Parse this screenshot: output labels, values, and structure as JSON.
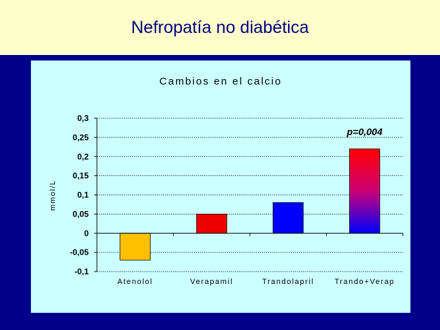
{
  "slide": {
    "title": "Nefropatía no diabética"
  },
  "colors": {
    "title_band": "#ffffcc",
    "background": "#00008b",
    "panel": "#ccffff",
    "title_text": "#000080"
  },
  "chart_data": {
    "type": "bar",
    "title": "Cambios en el calcio",
    "ylabel": "mmol/L",
    "xlabel": "",
    "categories": [
      "Atenolol",
      "Verapamil",
      "Trandolapril",
      "Trando+Verap"
    ],
    "values": [
      -0.07,
      0.05,
      0.08,
      0.22
    ],
    "bar_colors": [
      "#ffc000",
      "#ee0000",
      "#0000ff",
      "gradient-red-to-blue"
    ],
    "ylim": [
      -0.1,
      0.3
    ],
    "yticks": [
      "0,3",
      "0,25",
      "0,2",
      "0,15",
      "0,1",
      "0,05",
      "0",
      "-0,05",
      "-0,1"
    ],
    "ytick_values": [
      0.3,
      0.25,
      0.2,
      0.15,
      0.1,
      0.05,
      0,
      -0.05,
      -0.1
    ],
    "grid": true,
    "legend": "none",
    "annotation": {
      "text": "p=0,004",
      "category": "Trando+Verap"
    }
  }
}
